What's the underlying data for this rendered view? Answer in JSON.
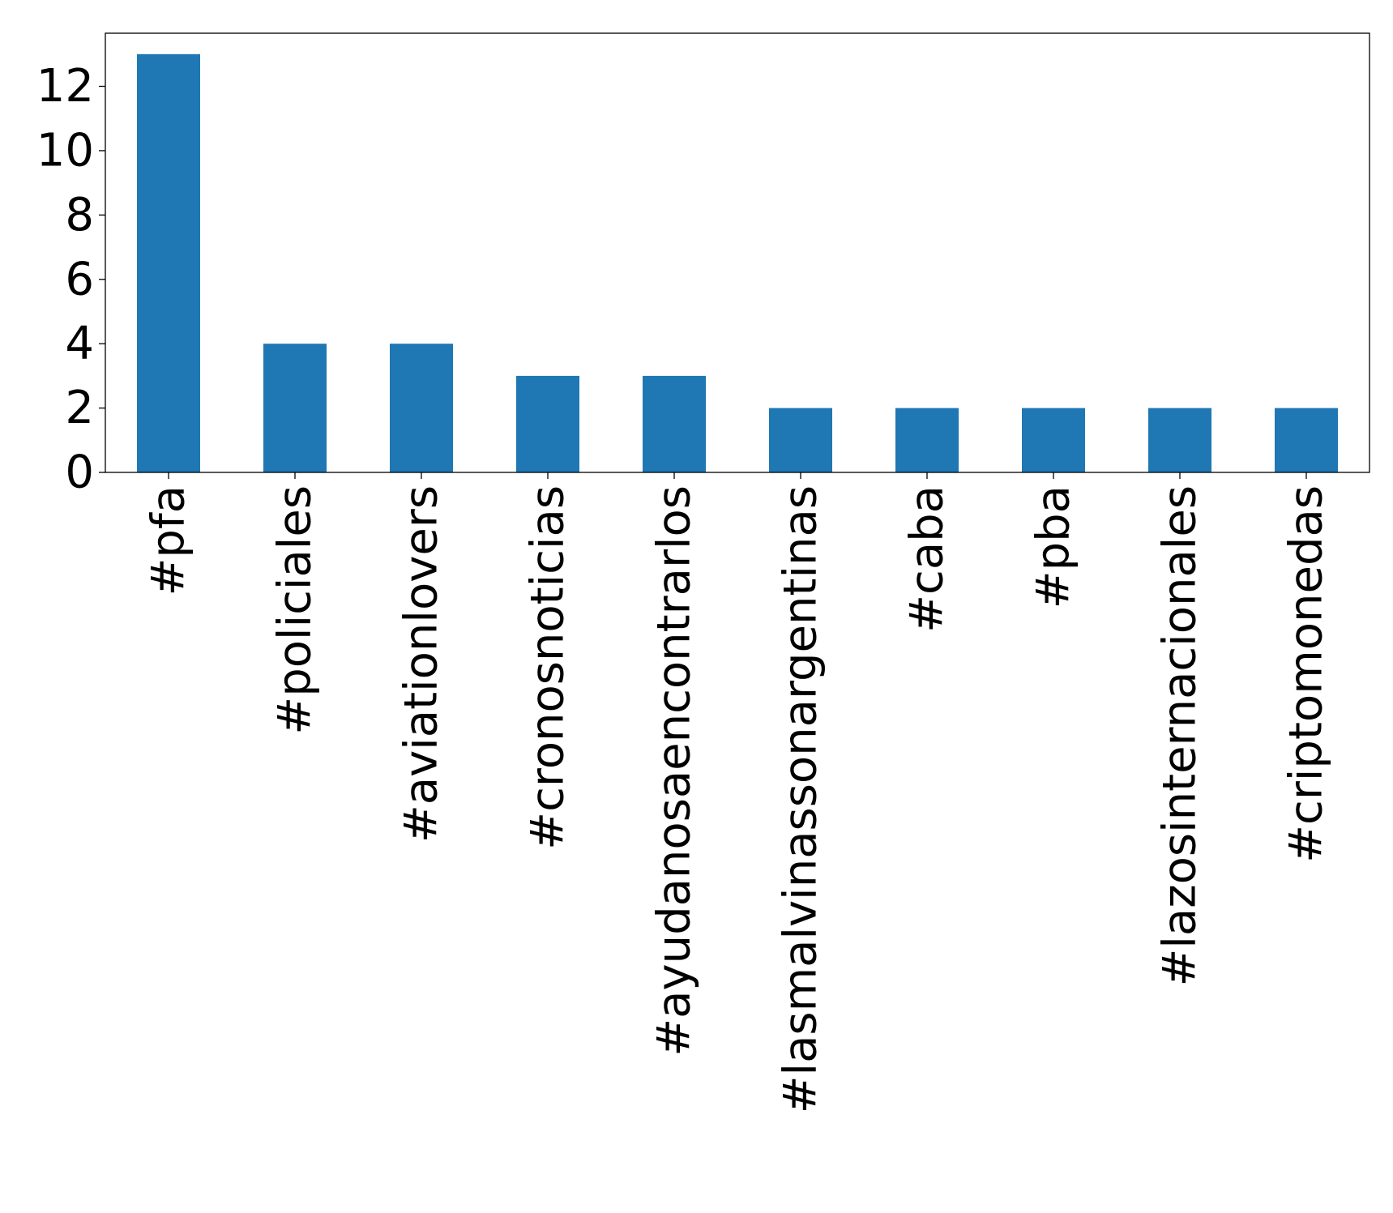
{
  "chart_data": {
    "type": "bar",
    "title": "",
    "xlabel": "",
    "ylabel": "",
    "categories": [
      "#pfa",
      "#policiales",
      "#aviationlovers",
      "#cronosnoticias",
      "#ayudanosaencontrarlos",
      "#lasmalvinassonargentinas",
      "#caba",
      "#pba",
      "#lazosinternacionales",
      "#criptomonedas"
    ],
    "values": [
      13,
      4,
      4,
      3,
      3,
      2,
      2,
      2,
      2,
      2
    ],
    "ylim": [
      0,
      13.65
    ],
    "yticks": [
      0,
      2,
      4,
      6,
      8,
      10,
      12
    ],
    "bar_color": "#1f77b4",
    "grid": false,
    "legend": "none"
  }
}
